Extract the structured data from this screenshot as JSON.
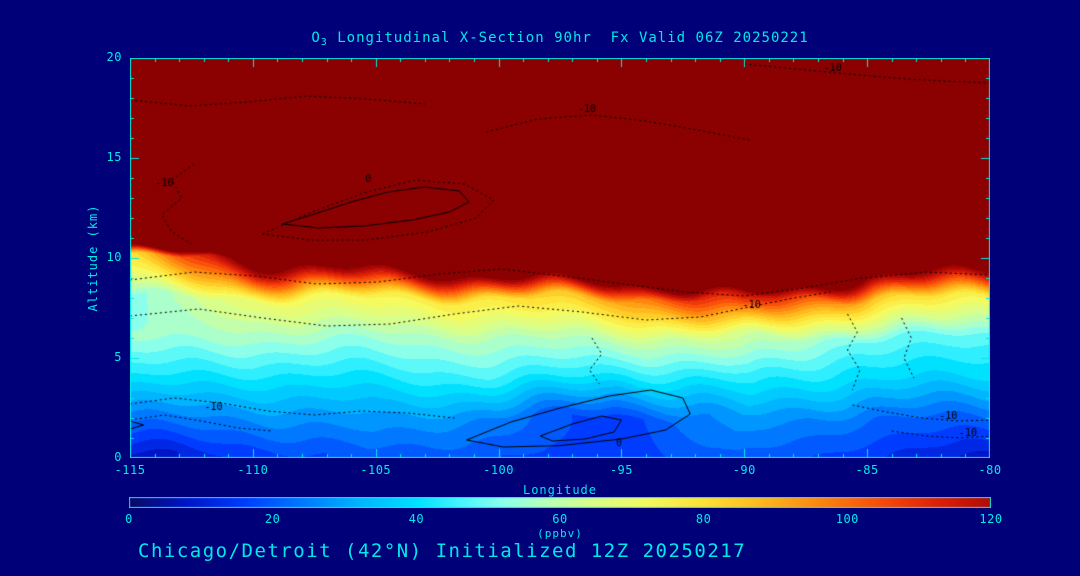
{
  "title": {
    "prefix": "O",
    "sub": "3",
    "rest": " Longitudinal X-Section 90hr  Fx Valid 06Z 20250221"
  },
  "footer": "Chicago/Detroit (42°N) Initialized 12Z 20250217",
  "colors": {
    "background": "#000078",
    "axis": "#00e9e9",
    "text": "#00e9e9",
    "contour_line": "#000000",
    "stratosphere_red": "#8b0000"
  },
  "chart_data": {
    "type": "heatmap",
    "title": "O3 Longitudinal X-Section 90hr  Fx Valid 06Z 20250221",
    "xlabel": "Longitude",
    "ylabel": "Altitude (km)",
    "colorbar_label": "(ppbv)",
    "xlim": [
      -115,
      -80
    ],
    "ylim": [
      0,
      20
    ],
    "clim": [
      0,
      120
    ],
    "x_ticks": [
      -115,
      -110,
      -105,
      -100,
      -95,
      -90,
      -85,
      -80
    ],
    "y_ticks": [
      0,
      5,
      10,
      15,
      20
    ],
    "colorbar_ticks": [
      0,
      20,
      40,
      60,
      80,
      100,
      120
    ],
    "field": {
      "longitudes": [
        -115,
        -110,
        -105,
        -100,
        -95,
        -90,
        -85,
        -80
      ],
      "altitudes": [
        0,
        2,
        4,
        6,
        8,
        10,
        12,
        16,
        20
      ],
      "values": [
        [
          8,
          14,
          20,
          18,
          16,
          22,
          15,
          8
        ],
        [
          25,
          26,
          30,
          25,
          14,
          30,
          22,
          22
        ],
        [
          42,
          40,
          42,
          45,
          40,
          45,
          38,
          38
        ],
        [
          55,
          55,
          55,
          58,
          60,
          65,
          50,
          48
        ],
        [
          50,
          70,
          75,
          80,
          90,
          120,
          85,
          75
        ],
        [
          80,
          140,
          150,
          170,
          185,
          220,
          165,
          150
        ],
        [
          300,
          300,
          300,
          300,
          300,
          300,
          300,
          300
        ],
        [
          300,
          300,
          300,
          300,
          300,
          300,
          300,
          300
        ],
        [
          300,
          300,
          300,
          300,
          300,
          300,
          300,
          300
        ]
      ]
    },
    "colormap": [
      [
        0,
        [
          10,
          10,
          100
        ]
      ],
      [
        8,
        [
          0,
          20,
          200
        ]
      ],
      [
        16,
        [
          0,
          60,
          255
        ]
      ],
      [
        24,
        [
          0,
          120,
          255
        ]
      ],
      [
        32,
        [
          0,
          180,
          255
        ]
      ],
      [
        40,
        [
          0,
          225,
          255
        ]
      ],
      [
        46,
        [
          70,
          245,
          255
        ]
      ],
      [
        52,
        [
          140,
          255,
          235
        ]
      ],
      [
        58,
        [
          185,
          255,
          185
        ]
      ],
      [
        64,
        [
          215,
          255,
          140
        ]
      ],
      [
        72,
        [
          245,
          250,
          95
        ]
      ],
      [
        80,
        [
          255,
          225,
          55
        ]
      ],
      [
        88,
        [
          255,
          185,
          30
        ]
      ],
      [
        96,
        [
          255,
          135,
          15
        ]
      ],
      [
        104,
        [
          250,
          80,
          10
        ]
      ],
      [
        112,
        [
          225,
          35,
          8
        ]
      ],
      [
        120,
        [
          180,
          10,
          6
        ]
      ],
      [
        128,
        [
          139,
          0,
          0
        ]
      ]
    ],
    "contours": {
      "zero_solid": [
        {
          "label": "0",
          "label_pos": [
            -105.3,
            13.95
          ],
          "points": [
            [
              -108.8,
              11.7
            ],
            [
              -107.5,
              12.2
            ],
            [
              -106,
              12.8
            ],
            [
              -104.5,
              13.3
            ],
            [
              -103,
              13.55
            ],
            [
              -101.6,
              13.35
            ],
            [
              -101.2,
              12.8
            ],
            [
              -102,
              12.3
            ],
            [
              -103.5,
              11.9
            ],
            [
              -105.5,
              11.6
            ],
            [
              -107.3,
              11.5
            ],
            [
              -108.8,
              11.7
            ]
          ]
        },
        {
          "label": "0",
          "label_pos": [
            -95.1,
            0.72
          ],
          "points": [
            [
              -101.3,
              0.9
            ],
            [
              -99.5,
              1.8
            ],
            [
              -97.5,
              2.5
            ],
            [
              -95.5,
              3.1
            ],
            [
              -93.8,
              3.4
            ],
            [
              -92.5,
              3.0
            ],
            [
              -92.2,
              2.2
            ],
            [
              -93.2,
              1.4
            ],
            [
              -95,
              0.95
            ],
            [
              -97.5,
              0.62
            ],
            [
              -99.8,
              0.55
            ],
            [
              -101.3,
              0.9
            ]
          ]
        },
        {
          "label": "",
          "label_pos": null,
          "points": [
            [
              -98.3,
              1.1
            ],
            [
              -97,
              1.7
            ],
            [
              -95.8,
              2.1
            ],
            [
              -95,
              1.9
            ],
            [
              -95.3,
              1.3
            ],
            [
              -96.5,
              0.95
            ],
            [
              -97.8,
              0.85
            ],
            [
              -98.3,
              1.1
            ]
          ]
        },
        {
          "label": "",
          "label_pos": null,
          "points": [
            [
              -115,
              1.85
            ],
            [
              -114.45,
              1.65
            ],
            [
              -115,
              1.45
            ]
          ]
        }
      ],
      "neg10_dotted": [
        {
          "label": "-10",
          "label_pos": [
            -86.4,
            19.5
          ],
          "points": [
            [
              -90,
              19.7
            ],
            [
              -87.9,
              19.45
            ],
            [
              -85.8,
              19.2
            ],
            [
              -83.4,
              18.95
            ],
            [
              -81,
              18.8
            ],
            [
              -80,
              18.75
            ]
          ]
        },
        {
          "label": "-10",
          "label_pos": [
            -96.4,
            17.45
          ],
          "points": [
            [
              -100.5,
              16.3
            ],
            [
              -98.4,
              16.95
            ],
            [
              -96.2,
              17.15
            ],
            [
              -94,
              16.85
            ],
            [
              -91.7,
              16.35
            ],
            [
              -89.8,
              15.9
            ]
          ]
        },
        {
          "label": "-10",
          "label_pos": [
            -113.6,
            13.75
          ],
          "points": [
            [
              -112.4,
              14.7
            ],
            [
              -113.3,
              13.9
            ],
            [
              -112.9,
              13.0
            ],
            [
              -113.7,
              12.15
            ],
            [
              -113.3,
              11.3
            ],
            [
              -112.5,
              10.7
            ]
          ]
        },
        {
          "label": "",
          "label_pos": null,
          "points": [
            [
              -115,
              8.9
            ],
            [
              -112.4,
              9.3
            ],
            [
              -109.9,
              9.1
            ],
            [
              -107.4,
              8.7
            ],
            [
              -104.9,
              8.8
            ],
            [
              -102.4,
              9.2
            ],
            [
              -99.9,
              9.45
            ],
            [
              -97.4,
              9.1
            ],
            [
              -94.9,
              8.7
            ],
            [
              -92.4,
              8.3
            ],
            [
              -90,
              8.1
            ],
            [
              -87.6,
              8.5
            ],
            [
              -85.2,
              9.0
            ],
            [
              -82.6,
              9.3
            ],
            [
              -80,
              9.15
            ]
          ]
        },
        {
          "label": "-10",
          "label_pos": [
            -89.7,
            7.65
          ],
          "points": [
            [
              -115,
              7.1
            ],
            [
              -112.2,
              7.45
            ],
            [
              -109.6,
              7.0
            ],
            [
              -107,
              6.6
            ],
            [
              -104.4,
              6.7
            ],
            [
              -101.8,
              7.2
            ],
            [
              -99.2,
              7.6
            ],
            [
              -96.6,
              7.3
            ],
            [
              -94,
              6.9
            ],
            [
              -91.8,
              7.05
            ],
            [
              -90,
              7.5
            ],
            [
              -88.2,
              7.95
            ],
            [
              -86.5,
              8.3
            ]
          ]
        },
        {
          "label": "-10",
          "label_pos": [
            -111.6,
            2.55
          ],
          "points": [
            [
              -115,
              2.7
            ],
            [
              -113.2,
              3.0
            ],
            [
              -111.3,
              2.75
            ],
            [
              -109.4,
              2.35
            ],
            [
              -107.5,
              2.15
            ],
            [
              -105.6,
              2.35
            ],
            [
              -103.7,
              2.25
            ],
            [
              -101.8,
              2.0
            ]
          ]
        },
        {
          "label": "",
          "label_pos": null,
          "points": [
            [
              -115,
              1.9
            ],
            [
              -113.6,
              2.15
            ],
            [
              -112.1,
              1.85
            ],
            [
              -110.6,
              1.5
            ],
            [
              -109.2,
              1.35
            ]
          ]
        },
        {
          "label": "-10",
          "label_pos": [
            -81.7,
            2.1
          ],
          "points": [
            [
              -85.6,
              2.65
            ],
            [
              -84.2,
              2.3
            ],
            [
              -82.8,
              2.0
            ],
            [
              -81.3,
              1.85
            ],
            [
              -80,
              1.9
            ]
          ]
        },
        {
          "label": "-10",
          "label_pos": [
            -80.9,
            1.25
          ],
          "points": [
            [
              -84,
              1.35
            ],
            [
              -82.6,
              1.1
            ],
            [
              -81.2,
              1.0
            ],
            [
              -80,
              1.1
            ]
          ]
        },
        {
          "label": "",
          "label_pos": null,
          "points": [
            [
              -109.6,
              11.2
            ],
            [
              -107.6,
              12.3
            ],
            [
              -105.5,
              13.25
            ],
            [
              -103.4,
              13.9
            ],
            [
              -101.4,
              13.7
            ],
            [
              -100.2,
              12.9
            ],
            [
              -100.9,
              12.0
            ],
            [
              -102.9,
              11.3
            ],
            [
              -105.4,
              10.9
            ],
            [
              -107.7,
              10.9
            ],
            [
              -109.6,
              11.2
            ]
          ]
        },
        {
          "label": "",
          "label_pos": null,
          "points": [
            [
              -115,
              17.9
            ],
            [
              -112.6,
              17.6
            ],
            [
              -110.2,
              17.8
            ],
            [
              -107.8,
              18.1
            ],
            [
              -105.4,
              17.95
            ],
            [
              -103,
              17.7
            ]
          ]
        },
        {
          "label": "",
          "label_pos": null,
          "points": [
            [
              -85.8,
              7.2
            ],
            [
              -85.4,
              6.3
            ],
            [
              -85.8,
              5.4
            ],
            [
              -85.3,
              4.4
            ],
            [
              -85.6,
              3.4
            ]
          ]
        },
        {
          "label": "",
          "label_pos": null,
          "points": [
            [
              -83.6,
              7.0
            ],
            [
              -83.2,
              6.0
            ],
            [
              -83.5,
              5.0
            ],
            [
              -83.1,
              4.0
            ]
          ]
        },
        {
          "label": "",
          "label_pos": null,
          "points": [
            [
              -96.2,
              6.0
            ],
            [
              -95.8,
              5.2
            ],
            [
              -96.3,
              4.4
            ],
            [
              -95.9,
              3.7
            ]
          ]
        }
      ]
    }
  }
}
